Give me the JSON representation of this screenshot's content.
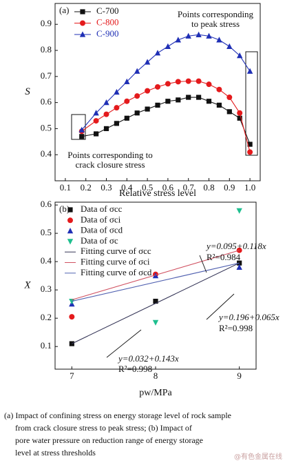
{
  "chart_data": [
    {
      "type": "line",
      "panel_label": "(a)",
      "x_label": "Relative stress level",
      "y_label": "S",
      "x": [
        0.18,
        0.25,
        0.3,
        0.35,
        0.4,
        0.45,
        0.5,
        0.55,
        0.6,
        0.65,
        0.7,
        0.75,
        0.8,
        0.85,
        0.9,
        0.95,
        1.0
      ],
      "series": [
        {
          "name": "C-700",
          "color": "#111111",
          "marker": "square",
          "values": [
            0.47,
            0.48,
            0.5,
            0.52,
            0.54,
            0.56,
            0.575,
            0.59,
            0.605,
            0.61,
            0.62,
            0.62,
            0.605,
            0.59,
            0.565,
            0.54,
            0.44
          ]
        },
        {
          "name": "C-800",
          "color": "#e41a1c",
          "marker": "circle",
          "values": [
            0.49,
            0.53,
            0.555,
            0.58,
            0.605,
            0.625,
            0.645,
            0.66,
            0.672,
            0.68,
            0.682,
            0.682,
            0.67,
            0.65,
            0.62,
            0.56,
            0.41
          ]
        },
        {
          "name": "C-900",
          "color": "#1f2fb5",
          "marker": "triangle",
          "values": [
            0.495,
            0.56,
            0.6,
            0.64,
            0.68,
            0.72,
            0.755,
            0.79,
            0.815,
            0.84,
            0.855,
            0.86,
            0.855,
            0.84,
            0.815,
            0.78,
            0.72
          ]
        }
      ],
      "xlim": [
        0.05,
        1.05
      ],
      "ylim": [
        0.3,
        0.98
      ],
      "xticks": [
        0.1,
        0.2,
        0.3,
        0.4,
        0.5,
        0.6,
        0.7,
        0.8,
        0.9,
        {
          "value": 1,
          "label": "1.0"
        }
      ],
      "yticks": [
        0.4,
        0.5,
        0.6,
        0.7,
        0.8,
        0.9
      ],
      "annotations": [
        [
          "Points corresponding",
          "to peak stress"
        ],
        [
          "Points corresponding to",
          "crack closure stress"
        ]
      ]
    },
    {
      "type": "scatter",
      "panel_label": "(b)",
      "x_label": "pw/MPa",
      "y_label": "X",
      "x": [
        7,
        8,
        9
      ],
      "series": [
        {
          "name": "Data of σcc",
          "color": "#111111",
          "marker": "square",
          "values": [
            0.11,
            0.26,
            0.395
          ]
        },
        {
          "name": "Data of σci",
          "color": "#e41a1c",
          "marker": "circle",
          "values": [
            0.205,
            0.355,
            0.44
          ]
        },
        {
          "name": "Data of σcd",
          "color": "#1f2fb5",
          "marker": "triangle",
          "values": [
            0.25,
            0.35,
            0.38
          ]
        },
        {
          "name": "Data of σc",
          "color": "#1fbf8f",
          "marker": "triangle-down",
          "values": [
            0.26,
            0.185,
            0.58
          ]
        },
        {
          "name": "Fitting curve of σcc",
          "color": "#333355",
          "marker": "none",
          "x": [
            7,
            9
          ],
          "values": [
            0.11,
            0.395
          ]
        },
        {
          "name": "Fitting curve of σci",
          "color": "#d05060",
          "marker": "none",
          "x": [
            7,
            9
          ],
          "values": [
            0.265,
            0.44
          ]
        },
        {
          "name": "Fitting curve of σcd",
          "color": "#5060b0",
          "marker": "none",
          "x": [
            7,
            9
          ],
          "values": [
            0.26,
            0.395
          ]
        }
      ],
      "xlim": [
        6.8,
        9.2
      ],
      "ylim": [
        0.02,
        0.61
      ],
      "xticks": [
        7,
        8,
        9
      ],
      "yticks": [
        0.1,
        0.2,
        0.3,
        0.4,
        0.5,
        0.6
      ],
      "annotations": [
        [
          "y=0.095+0.118x",
          "R²=0.984"
        ],
        [
          "y=0.196+0.065x",
          "R²=0.998"
        ],
        [
          "y=0.032+0.143x",
          "R²=0.998"
        ]
      ]
    }
  ],
  "caption": [
    "(a)  Impact  of confining stress on energy storage level of rock sample",
    "from crack closure stress to peak stress; (b) Impact of",
    "pore water pressure on reduction range of energy storage",
    "level at stress thresholds"
  ],
  "watermark": "@有色金属在线"
}
